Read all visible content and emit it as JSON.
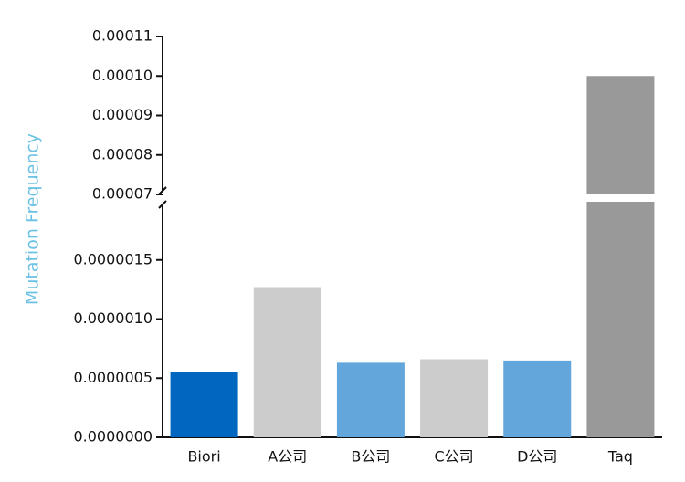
{
  "chart_data": {
    "type": "bar",
    "y_axis_label": "Mutation Frequency",
    "y_axis_label_color": "#6cc2e4",
    "categories": [
      "Biori",
      "A公司",
      "B公司",
      "C公司",
      "D公司",
      "Taq"
    ],
    "values": [
      5.5e-07,
      1.27e-06,
      6.3e-07,
      6.6e-07,
      6.5e-07,
      0.0001
    ],
    "colors": [
      "#0066c0",
      "#cccccc",
      "#62a6dc",
      "#cccccc",
      "#62a6dc",
      "#999999"
    ],
    "axis_break": true,
    "segments": [
      {
        "ylim": [
          0,
          2e-06
        ],
        "yticks": [
          {
            "value": 0,
            "label": "0.0000000"
          },
          {
            "value": 5e-07,
            "label": "0.0000005"
          },
          {
            "value": 1e-06,
            "label": "0.0000010"
          },
          {
            "value": 1.5e-06,
            "label": "0.0000015"
          }
        ]
      },
      {
        "ylim": [
          7e-05,
          0.00011
        ],
        "yticks": [
          7e-05,
          8e-05,
          9e-05,
          {
            "value": 0.0001,
            "label": "0.00010"
          },
          0.00011
        ]
      }
    ]
  }
}
